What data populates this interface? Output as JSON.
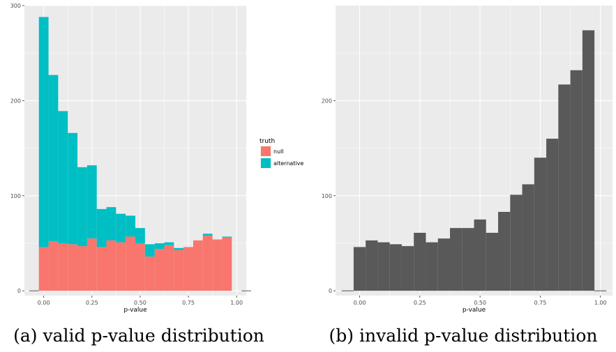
{
  "captions": {
    "a": "(a) valid p-value distribution",
    "b": "(b) invalid p-value distribution"
  },
  "colors": {
    "panel_bg": "#ebebeb",
    "grid": "#ffffff",
    "null": "#f8766d",
    "alternative": "#00bfc4",
    "bar_dark": "#595959"
  },
  "chart_data": [
    {
      "type": "bar",
      "stacked": true,
      "xlabel": "p-value",
      "ylabel": "",
      "xlim": [
        -0.1,
        1.05
      ],
      "ylim": [
        -5,
        300
      ],
      "xticks": [
        0.0,
        0.25,
        0.5,
        0.75,
        1.0
      ],
      "xtick_labels": [
        "0.00",
        "0.25",
        "0.50",
        "0.75",
        "1.00"
      ],
      "yticks": [
        0,
        100,
        200,
        300
      ],
      "ytick_labels": [
        "0",
        "100",
        "200",
        "300"
      ],
      "grid": true,
      "legend": {
        "title": "truth",
        "position": "right",
        "entries": [
          "null",
          "alternative"
        ]
      },
      "bin_width": 0.05,
      "bin_centers": [
        -0.05,
        0.0,
        0.05,
        0.1,
        0.15,
        0.2,
        0.25,
        0.3,
        0.35,
        0.4,
        0.45,
        0.5,
        0.55,
        0.6,
        0.65,
        0.7,
        0.75,
        0.8,
        0.85,
        0.9,
        0.95,
        1.0,
        1.05
      ],
      "series": [
        {
          "name": "null",
          "values": [
            0,
            46,
            52,
            50,
            49,
            47,
            55,
            46,
            53,
            51,
            57,
            50,
            36,
            44,
            48,
            43,
            46,
            53,
            58,
            54,
            56,
            0,
            0
          ]
        },
        {
          "name": "alternative",
          "values": [
            0,
            242,
            175,
            139,
            117,
            83,
            77,
            40,
            35,
            30,
            22,
            16,
            13,
            6,
            3,
            2,
            0,
            0,
            2,
            0,
            1,
            0,
            0
          ]
        }
      ]
    },
    {
      "type": "bar",
      "xlabel": "p-value",
      "ylabel": "",
      "xlim": [
        -0.1,
        1.05
      ],
      "ylim": [
        -5,
        300
      ],
      "xticks": [
        0.0,
        0.25,
        0.5,
        0.75,
        1.0
      ],
      "xtick_labels": [
        "0.00",
        "0.25",
        "0.50",
        "0.75",
        "1.00"
      ],
      "yticks": [
        0,
        100,
        200
      ],
      "ytick_labels": [
        "0",
        "100",
        "200"
      ],
      "grid": true,
      "bin_width": 0.05,
      "bin_centers": [
        -0.05,
        0.0,
        0.05,
        0.1,
        0.15,
        0.2,
        0.25,
        0.3,
        0.35,
        0.4,
        0.45,
        0.5,
        0.55,
        0.6,
        0.65,
        0.7,
        0.75,
        0.8,
        0.85,
        0.9,
        0.95,
        1.0
      ],
      "values": [
        0,
        46,
        53,
        51,
        49,
        47,
        61,
        51,
        55,
        66,
        66,
        75,
        61,
        83,
        101,
        112,
        140,
        160,
        217,
        232,
        274,
        0
      ]
    }
  ]
}
